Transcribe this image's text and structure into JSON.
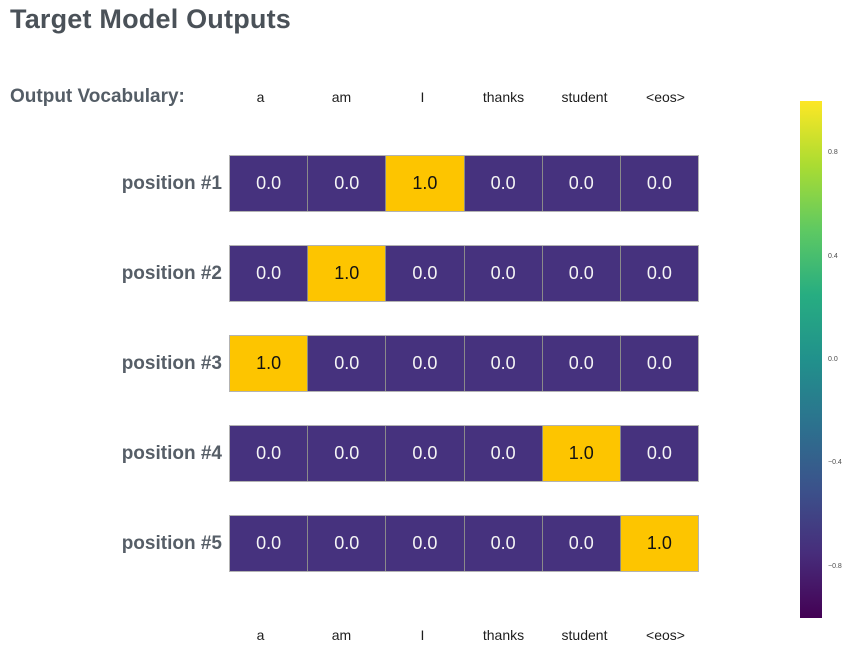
{
  "title": "Target Model Outputs",
  "vocab": {
    "label": "Output Vocabulary:",
    "terms": [
      "a",
      "am",
      "I",
      "thanks",
      "student",
      "<eos>"
    ]
  },
  "rows": [
    {
      "label": "position #1",
      "cells": [
        "0.0",
        "0.0",
        "1.0",
        "0.0",
        "0.0",
        "0.0"
      ]
    },
    {
      "label": "position #2",
      "cells": [
        "0.0",
        "1.0",
        "0.0",
        "0.0",
        "0.0",
        "0.0"
      ]
    },
    {
      "label": "position #3",
      "cells": [
        "1.0",
        "0.0",
        "0.0",
        "0.0",
        "0.0",
        "0.0"
      ]
    },
    {
      "label": "position #4",
      "cells": [
        "0.0",
        "0.0",
        "0.0",
        "0.0",
        "1.0",
        "0.0"
      ]
    },
    {
      "label": "position #5",
      "cells": [
        "0.0",
        "0.0",
        "0.0",
        "0.0",
        "0.0",
        "1.0"
      ]
    }
  ],
  "colors": {
    "cell_zero": "#46327e",
    "cell_one": "#fdc500",
    "cell_zero_text": "#f5f5f5",
    "cell_one_text": "#121212",
    "title_text": "#4a5158",
    "label_text": "#565e67"
  },
  "colorbar": {
    "ticks": [
      "0.8",
      "0.4",
      "0.0",
      "−0.4",
      "−0.8"
    ],
    "range": [
      -1,
      1
    ],
    "colorscale": "viridis",
    "gradient_stops": [
      "#fde725",
      "#aadc32",
      "#5ec962",
      "#27ad81",
      "#21918c",
      "#2c728e",
      "#3b528b",
      "#472d7b",
      "#440154"
    ]
  },
  "chart_data": {
    "type": "heatmap",
    "title": "Target Model Outputs",
    "x_categories": [
      "a",
      "am",
      "I",
      "thanks",
      "student",
      "<eos>"
    ],
    "y_categories": [
      "position #1",
      "position #2",
      "position #3",
      "position #4",
      "position #5"
    ],
    "matrix": [
      [
        0.0,
        0.0,
        1.0,
        0.0,
        0.0,
        0.0
      ],
      [
        0.0,
        1.0,
        0.0,
        0.0,
        0.0,
        0.0
      ],
      [
        1.0,
        0.0,
        0.0,
        0.0,
        0.0,
        0.0
      ],
      [
        0.0,
        0.0,
        0.0,
        0.0,
        1.0,
        0.0
      ],
      [
        0.0,
        0.0,
        0.0,
        0.0,
        0.0,
        1.0
      ]
    ],
    "colorscale": "viridis",
    "colorbar": {
      "position": "right",
      "ticks": [
        0.8,
        0.4,
        0.0,
        -0.4,
        -0.8
      ],
      "range": [
        -1,
        1
      ]
    },
    "grid": false,
    "cell_labels_shown": true
  }
}
